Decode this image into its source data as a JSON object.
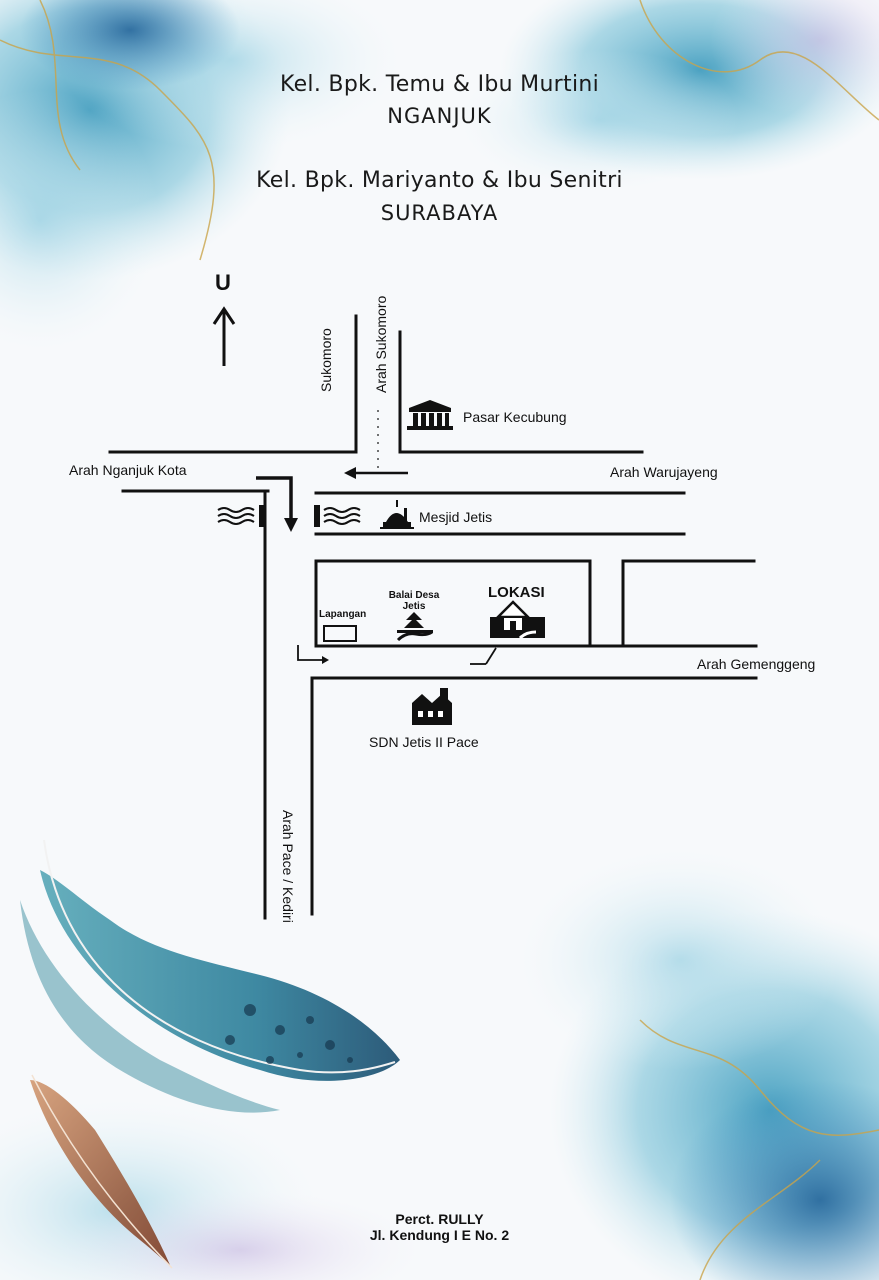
{
  "header": {
    "family1_name": "Kel. Bpk. Temu & Ibu Murtini",
    "family1_city": "NGANJUK",
    "family2_name": "Kel. Bpk. Mariyanto & Ibu Senitri",
    "family2_city": "SURABAYA"
  },
  "compass": {
    "label": "U",
    "icon": "north-arrow-icon"
  },
  "roads": {
    "sukomoro": "Sukomoro",
    "arah_sukomoro": "Arah Sukomoro",
    "arah_nganjuk_kota": "Arah Nganjuk Kota",
    "arah_warujayeng": "Arah Warujayeng",
    "arah_gemenggeng": "Arah Gemenggeng",
    "arah_pace_kediri": "Arah Pace / Kediri"
  },
  "landmarks": {
    "pasar": {
      "label": "Pasar Kecubung",
      "icon": "market-icon"
    },
    "mesjid": {
      "label": "Mesjid Jetis",
      "icon": "mosque-icon"
    },
    "lapangan": {
      "label": "Lapangan",
      "icon": "field-icon"
    },
    "balai_desa": {
      "label_line1": "Balai Desa",
      "label_line2": "Jetis",
      "icon": "village-hall-icon"
    },
    "lokasi": {
      "label": "LOKASI",
      "icon": "house-icon"
    },
    "sdn": {
      "label": "SDN Jetis II Pace",
      "icon": "school-icon"
    }
  },
  "footer": {
    "printer": "Perct. RULLY",
    "address": "Jl. Kendung I E No. 2"
  },
  "colors": {
    "ink": "#111111",
    "teal": "#2f8fb0",
    "deep_blue": "#1d4f86",
    "gold": "#c9a44a",
    "feather_brown": "#8a4a2b"
  }
}
